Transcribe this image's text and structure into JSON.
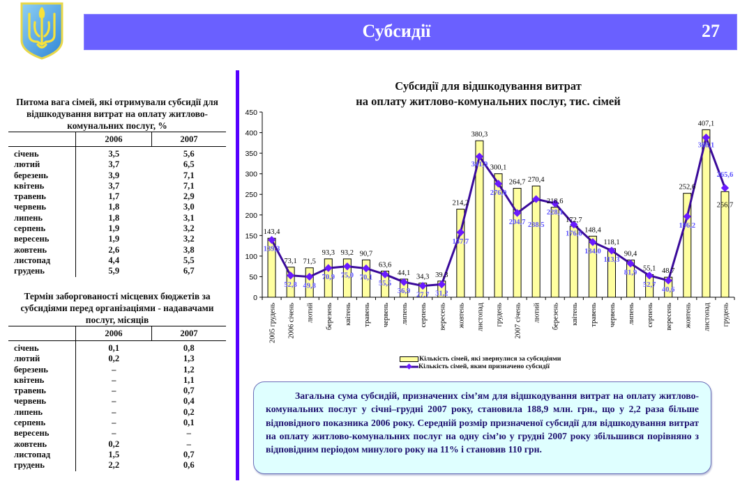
{
  "header": {
    "title": "Субсидії",
    "page_number": "27",
    "band_color": "#6a60ff",
    "emblem": "ukraine-coat-of-arms"
  },
  "table1": {
    "title": "Питома вага сімей, які отримували субсидії для відшкодування витрат на оплату житлово-комунальних послуг, %",
    "columns": [
      "",
      "2006",
      "2007"
    ],
    "rows": [
      {
        "month": "січень",
        "y2006": "3,5",
        "y2007": "5,6"
      },
      {
        "month": "лютий",
        "y2006": "3,7",
        "y2007": "6,5"
      },
      {
        "month": "березень",
        "y2006": "3,9",
        "y2007": "7,1"
      },
      {
        "month": "квітень",
        "y2006": "3,7",
        "y2007": "7,1"
      },
      {
        "month": "травень",
        "y2006": "1,7",
        "y2007": "2,9"
      },
      {
        "month": "червень",
        "y2006": "1,8",
        "y2007": "3,0"
      },
      {
        "month": "липень",
        "y2006": "1,8",
        "y2007": "3,1"
      },
      {
        "month": "серпень",
        "y2006": "1,9",
        "y2007": "3,2"
      },
      {
        "month": "вересень",
        "y2006": "1,9",
        "y2007": "3,2"
      },
      {
        "month": "жовтень",
        "y2006": "2,6",
        "y2007": "3,8"
      },
      {
        "month": "листопад",
        "y2006": "4,4",
        "y2007": "5,5"
      },
      {
        "month": "грудень",
        "y2006": "5,9",
        "y2007": "6,7"
      }
    ]
  },
  "table2": {
    "title": "Термін заборгованості місцевих бюджетів за субсидіями перед організаціями - надавачами послуг, місяців",
    "columns": [
      "",
      "2006",
      "2007"
    ],
    "rows": [
      {
        "month": "січень",
        "y2006": "0,1",
        "y2007": "0,8"
      },
      {
        "month": "лютий",
        "y2006": "0,2",
        "y2007": "1,3"
      },
      {
        "month": "березень",
        "y2006": "–",
        "y2007": "1,2"
      },
      {
        "month": "квітень",
        "y2006": "–",
        "y2007": "1,1"
      },
      {
        "month": "травень",
        "y2006": "–",
        "y2007": "0,7"
      },
      {
        "month": "червень",
        "y2006": "–",
        "y2007": "0,4"
      },
      {
        "month": "липень",
        "y2006": "–",
        "y2007": "0,2"
      },
      {
        "month": "серпень",
        "y2006": "–",
        "y2007": "0,1"
      },
      {
        "month": "вересень",
        "y2006": "–",
        "y2007": "–"
      },
      {
        "month": "жовтень",
        "y2006": "0,2",
        "y2007": "–"
      },
      {
        "month": "листопад",
        "y2006": "1,5",
        "y2007": "0,7"
      },
      {
        "month": "грудень",
        "y2006": "2,2",
        "y2007": "0,6"
      }
    ]
  },
  "chart_data": {
    "type": "bar",
    "title_line1": "Субсидії для відшкодування витрат",
    "title_line2": "на оплату житлово-комунальних послуг, тис. сімей",
    "xlabel": "",
    "ylabel": "",
    "ylim": [
      0,
      450
    ],
    "yticks": [
      "0",
      "50",
      "100",
      "150",
      "200",
      "250",
      "300",
      "350",
      "400",
      "450"
    ],
    "grid": false,
    "legend_position": "bottom",
    "categories": [
      "2005 грудень",
      "2006 січень",
      "лютий",
      "березень",
      "квітень",
      "травень",
      "червень",
      "липень",
      "серпень",
      "вересень",
      "жовтень",
      "листопад",
      "грудень",
      "2007 січень",
      "лютий",
      "березень",
      "квітень",
      "травень",
      "червень",
      "липень",
      "серпень",
      "вересень",
      "жовтень",
      "листопад",
      "грудень"
    ],
    "series": [
      {
        "name": "Кількість сімей, які звернулися за субсидіями",
        "type": "bar",
        "color": "#ffffa0",
        "values": [
          143.4,
          73.1,
          71.5,
          93.3,
          93.2,
          90.7,
          63.6,
          44.1,
          34.3,
          39.3,
          214.2,
          380.3,
          300.1,
          264.7,
          270.4,
          218.6,
          172.7,
          148.4,
          118.1,
          90.4,
          55.1,
          48.7,
          252.6,
          407.1,
          256.7
        ],
        "labels": [
          "143,4",
          "73,1",
          "71,5",
          "93,3",
          "93,2",
          "90,7",
          "63,6",
          "44,1",
          "34,3",
          "39,3",
          "214,2",
          "380,3",
          "300,1",
          "264,7",
          "270,4",
          "218,6",
          "172,7",
          "148,4",
          "118,1",
          "90,4",
          "55,1",
          "48,7",
          "252,6",
          "407,1",
          "256,7"
        ]
      },
      {
        "name": "Кількість сімей, яким призначено субсидії",
        "type": "line",
        "color": "#3a0a9a",
        "marker_color": "#6a1aff",
        "label_color": "#5a50ff",
        "values": [
          139.3,
          52.8,
          49.8,
          70.9,
          75.0,
          70.1,
          55.5,
          36.9,
          27.7,
          31.2,
          157.7,
          341.9,
          276.0,
          204.7,
          238.5,
          228.1,
          176.6,
          134.0,
          113.3,
          81.9,
          52.7,
          40.6,
          196.2,
          388.1,
          265.6
        ],
        "labels": [
          "139,3",
          "52,8",
          "49,8",
          "70,9",
          "75,0",
          "70,1",
          "55,5",
          "36,9",
          "27,7",
          "31,2",
          "157,7",
          "341,9",
          "276,0",
          "204,7",
          "238,5",
          "228,1",
          "176,6",
          "134,0",
          "113,3",
          "81,9",
          "52,7",
          "40,6",
          "196,2",
          "388,1",
          "265,6"
        ]
      }
    ]
  },
  "info_box": {
    "text": "Загальна сума субсидій, призначених сім’ям для відшкодування витрат на оплату житлово-комунальних послуг у січні–грудні 2007 року, становила 188,9 млн. грн., що у 2,2 раза більше відповідного показника 2006 року. Середній розмір призначеної субсидії для відшкодування витрат на оплату житлово-комунальних послуг на одну сім’ю у грудні 2007 року збільшився  порівняно з відповідним періодом минулого року на 11% і становив 110 грн."
  }
}
